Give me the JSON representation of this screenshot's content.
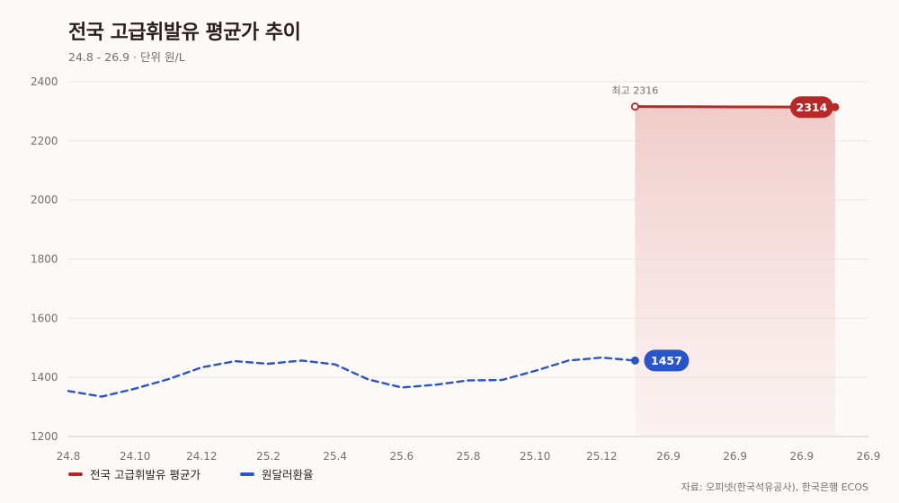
{
  "title": "전국 고급휘발유 평균가 추이",
  "subtitle": "24.8 - 26.9 · 단위 원/L",
  "source": "자료: 오피넷(한국석유공사), 한국은행 ECOS",
  "colors": {
    "fuel": "#b52a28",
    "fx": "#2a55c9",
    "fill_top": "#f1cfcd",
    "grid": "#ece6e3",
    "axis_text": "#7a6e6a"
  },
  "chart_data": {
    "type": "line",
    "ylim": [
      1200,
      2400
    ],
    "yticks": [
      1200,
      1400,
      1600,
      1800,
      2000,
      2200,
      2400
    ],
    "x_tick_labels": [
      "24.8",
      "24.10",
      "24.12",
      "25.2",
      "25.4",
      "25.6",
      "25.8",
      "25.10",
      "25.12",
      "26.9",
      "26.9",
      "26.9",
      "26.9"
    ],
    "grid": true,
    "legend_position": "bottom-left",
    "series": [
      {
        "name": "전국 고급휘발유 평균가",
        "key": "fuel",
        "style": "solid",
        "area_fill": true,
        "x": [
          17.0,
          17.75,
          18.5,
          19.25,
          20.0,
          20.75,
          21.5,
          22.25,
          23.0
        ],
        "values": [
          2316,
          2315.8,
          2315.5,
          2315.2,
          2315,
          2314.8,
          2314.5,
          2314.2,
          2314
        ],
        "max_label": "최고 2316",
        "end_label": "2314"
      },
      {
        "name": "원달러환율",
        "key": "fx",
        "style": "dashed",
        "x": [
          0,
          1,
          2,
          3,
          4,
          5,
          6,
          7,
          8,
          9,
          10,
          11,
          12,
          13,
          14,
          15,
          16,
          17
        ],
        "values": [
          1354,
          1335,
          1362,
          1394,
          1434,
          1455,
          1446,
          1457,
          1444,
          1393,
          1366,
          1375,
          1390,
          1391,
          1422,
          1457,
          1467,
          1457
        ],
        "end_label": "1457"
      }
    ]
  }
}
